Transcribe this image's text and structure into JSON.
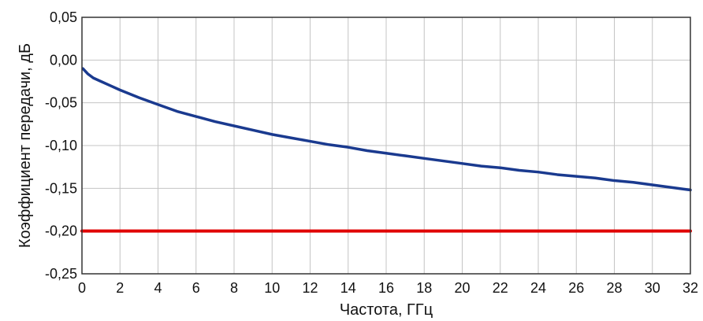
{
  "chart_data": {
    "type": "line",
    "title": "",
    "xlabel": "Частота, ГГц",
    "ylabel": "Коэффициент передачи, дБ",
    "xlim": [
      0,
      32
    ],
    "ylim": [
      -0.25,
      0.05
    ],
    "grid": true,
    "legend": "none",
    "x_ticks": [
      0,
      2,
      4,
      6,
      8,
      10,
      12,
      14,
      16,
      18,
      20,
      22,
      24,
      26,
      28,
      30,
      32
    ],
    "x_tick_labels": [
      "0",
      "2",
      "4",
      "6",
      "8",
      "10",
      "12",
      "14",
      "16",
      "18",
      "20",
      "22",
      "24",
      "26",
      "28",
      "30",
      "32"
    ],
    "y_ticks": [
      0.05,
      0.0,
      -0.05,
      -0.1,
      -0.15,
      -0.2,
      -0.25
    ],
    "y_tick_labels": [
      "0,05",
      "0,00",
      "-0,05",
      "-0,10",
      "-0,15",
      "-0,20",
      "-0,25"
    ],
    "series": [
      {
        "color": "#1a3a8f",
        "x": [
          0.05,
          0.3,
          0.6,
          1,
          1.5,
          2,
          3,
          4,
          5,
          6,
          7,
          8,
          9,
          10,
          11,
          12,
          13,
          14,
          15,
          16,
          17,
          18,
          19,
          20,
          21,
          22,
          23,
          24,
          25,
          26,
          27,
          28,
          29,
          30,
          31,
          32
        ],
        "y": [
          -0.01,
          -0.016,
          -0.021,
          -0.025,
          -0.03,
          -0.035,
          -0.044,
          -0.052,
          -0.06,
          -0.066,
          -0.072,
          -0.077,
          -0.082,
          -0.087,
          -0.091,
          -0.095,
          -0.099,
          -0.102,
          -0.106,
          -0.109,
          -0.112,
          -0.115,
          -0.118,
          -0.121,
          -0.124,
          -0.126,
          -0.129,
          -0.131,
          -0.134,
          -0.136,
          -0.138,
          -0.141,
          -0.143,
          -0.146,
          -0.149,
          -0.152
        ]
      },
      {
        "color": "#e00000",
        "x": [
          0,
          32
        ],
        "y": [
          -0.2,
          -0.2
        ]
      }
    ]
  }
}
